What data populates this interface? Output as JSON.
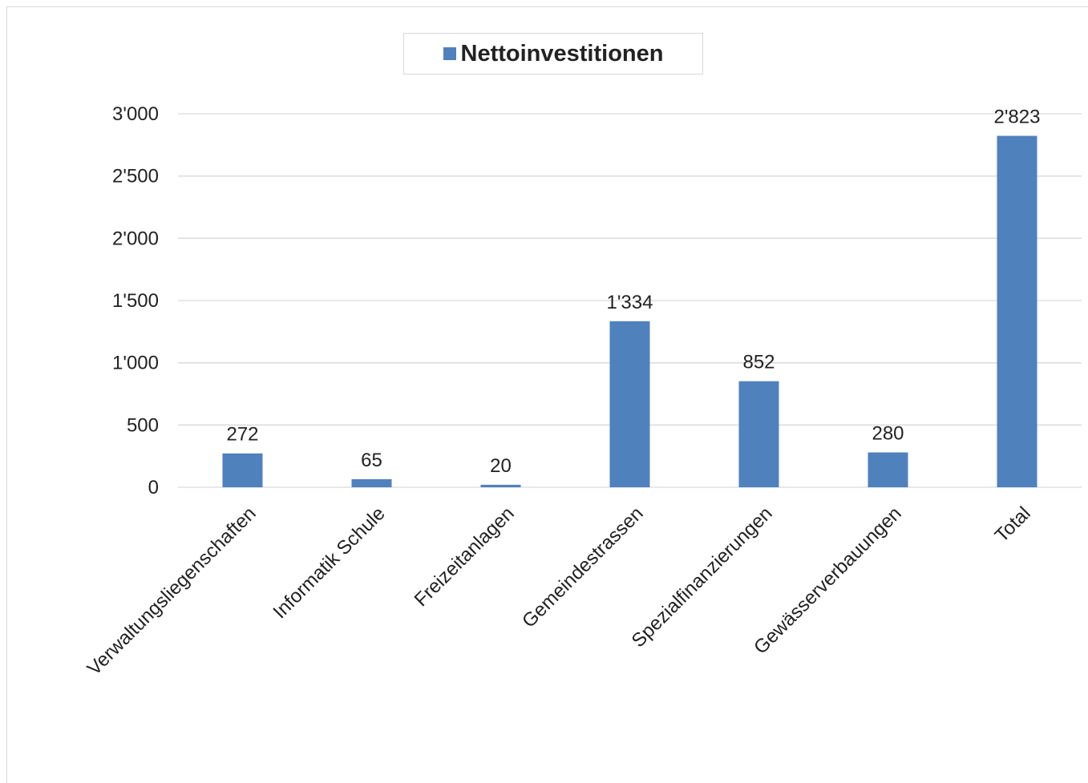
{
  "chart_data": {
    "type": "bar",
    "series": [
      {
        "name": "Nettoinvestitionen",
        "color": "#4f81bd",
        "values": [
          272,
          65,
          20,
          1334,
          852,
          280,
          2823
        ]
      }
    ],
    "categories": [
      "Verwaltungsliegenschaften",
      "Informatik Schule",
      "Freizeitanlagen",
      "Gemeindestrassen",
      "Spezialfinanzierungen",
      "Gewässerverbauungen",
      "Total"
    ],
    "data_labels": [
      "272",
      "65",
      "20",
      "1'334",
      "852",
      "280",
      "2'823"
    ],
    "y_ticks": [
      0,
      500,
      1000,
      1500,
      2000,
      2500,
      3000
    ],
    "y_tick_labels": [
      "0",
      "500",
      "1'000",
      "1'500",
      "2'000",
      "2'500",
      "3'000"
    ],
    "ylim": [
      0,
      3000
    ],
    "grid": true,
    "legend_position": "top-center"
  }
}
